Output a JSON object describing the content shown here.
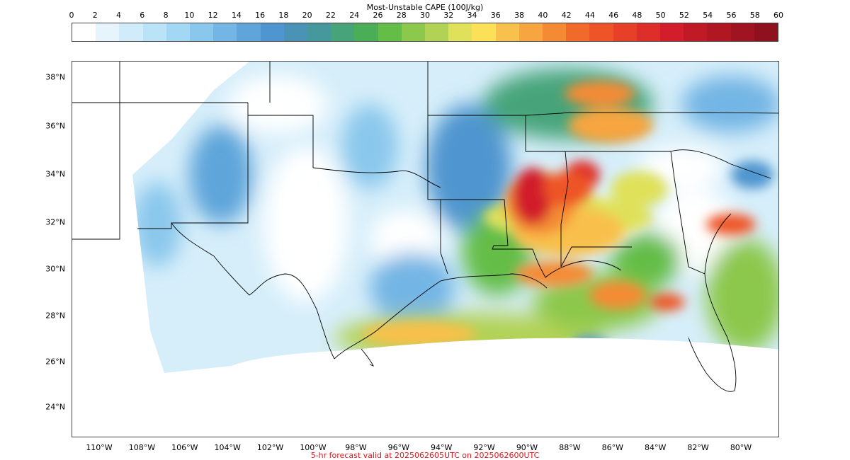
{
  "colorbar": {
    "title": "Most-Unstable CAPE (100J/kg)",
    "tick_labels": [
      "0",
      "2",
      "4",
      "6",
      "8",
      "10",
      "12",
      "14",
      "16",
      "18",
      "20",
      "22",
      "24",
      "26",
      "28",
      "30",
      "32",
      "34",
      "36",
      "38",
      "40",
      "42",
      "44",
      "46",
      "48",
      "50",
      "52",
      "54",
      "56",
      "58",
      "60"
    ],
    "colors": [
      "#ffffff",
      "#e6f5fc",
      "#d0ebf9",
      "#bae3f8",
      "#a2d8f4",
      "#8ac7ec",
      "#73b5e4",
      "#5fa5da",
      "#4f95cf",
      "#4a92b6",
      "#45989c",
      "#47a47a",
      "#4aae56",
      "#64bd46",
      "#8cc84c",
      "#b2d256",
      "#dfe15a",
      "#fbe058",
      "#f8c04c",
      "#f6a540",
      "#f48b34",
      "#f26a2a",
      "#ee5428",
      "#e64028",
      "#de2e2a",
      "#d21e2a",
      "#c01a26",
      "#b01722",
      "#9f1420",
      "#8e111d"
    ]
  },
  "lat_labels": [
    "38°N",
    "36°N",
    "34°N",
    "32°N",
    "30°N",
    "28°N",
    "26°N",
    "24°N"
  ],
  "lon_labels": [
    "110°W",
    "108°W",
    "106°W",
    "104°W",
    "102°W",
    "100°W",
    "98°W",
    "96°W",
    "94°W",
    "92°W",
    "90°W",
    "88°W",
    "86°W",
    "84°W",
    "82°W",
    "80°W"
  ],
  "footer": "5-hr forecast valid at 2025062605UTC on 2025062600UTC"
}
